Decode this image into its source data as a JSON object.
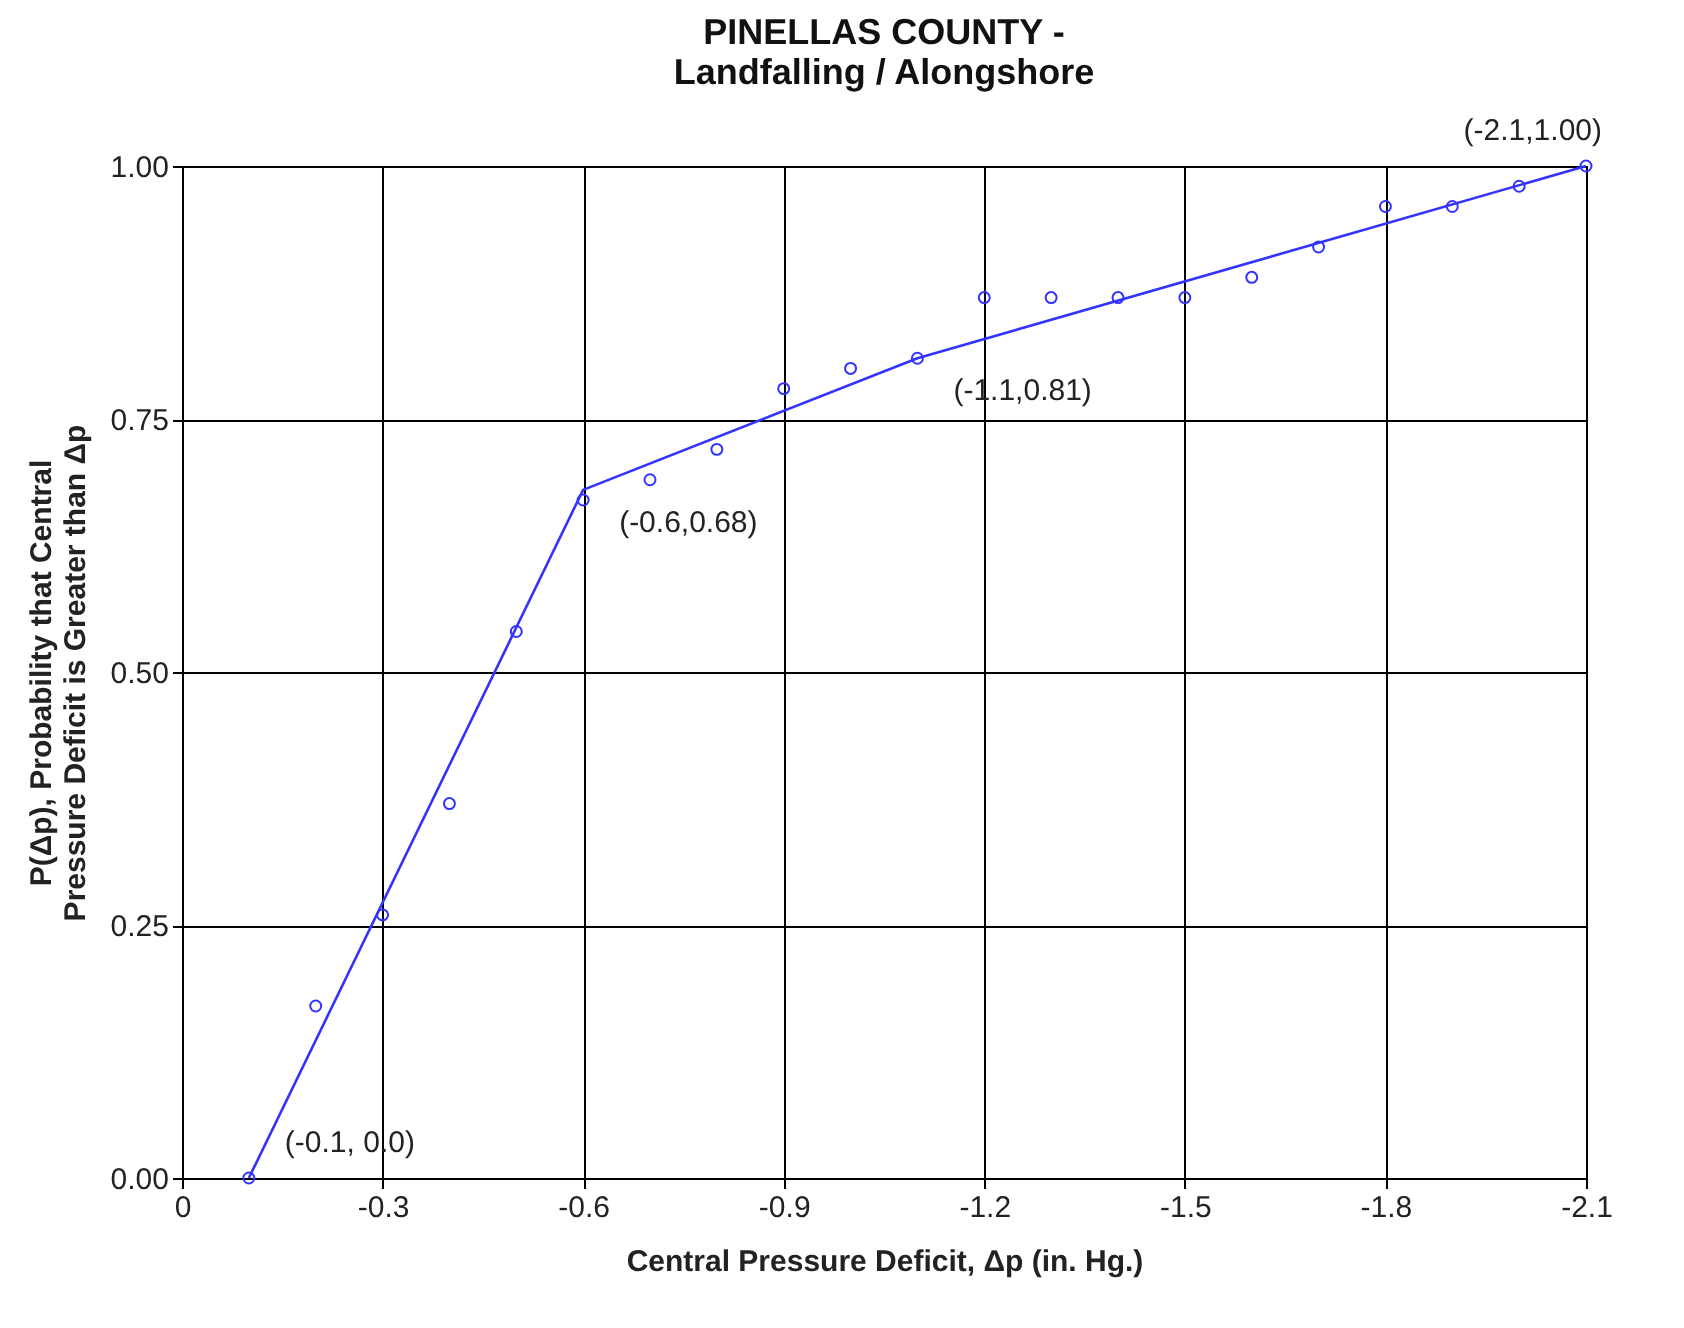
{
  "chart_data": {
    "type": "scatter",
    "title": "PINELLAS  COUNTY -\nLandfalling / Alongshore",
    "xlabel": "Central Pressure Deficit, Δp (in. Hg.)",
    "ylabel": "P(Δp), Probability that Central Pressure Deficit is Greater than Δp",
    "x": [
      -0.1,
      -0.2,
      -0.3,
      -0.4,
      -0.5,
      -0.6,
      -0.7,
      -0.8,
      -0.9,
      -1.0,
      -1.1,
      -1.2,
      -1.3,
      -1.4,
      -1.5,
      -1.6,
      -1.7,
      -1.8,
      -1.9,
      -2.0,
      -2.1
    ],
    "series": [
      {
        "color": "#3333ff",
        "marker": "circle",
        "values": [
          0.0,
          0.17,
          0.26,
          0.37,
          0.54,
          0.67,
          0.69,
          0.72,
          0.78,
          0.8,
          0.81,
          0.87,
          0.87,
          0.87,
          0.87,
          0.89,
          0.92,
          0.96,
          0.96,
          0.98,
          1.0
        ]
      },
      {
        "type": "line",
        "color": "#3333ff",
        "marker": "none",
        "x": [
          -0.1,
          -0.6,
          -1.1,
          -2.1
        ],
        "values": [
          0.0,
          0.68,
          0.81,
          1.0
        ]
      }
    ],
    "annotations": [
      {
        "text": "(-0.1,  0.0)",
        "x": -0.1,
        "y": 0.0
      },
      {
        "text": "(-0.6,0.68)",
        "x": -0.6,
        "y": 0.68
      },
      {
        "text": "(-1.1,0.81)",
        "x": -1.1,
        "y": 0.81
      },
      {
        "text": "(-2.1,1.00)",
        "x": -2.1,
        "y": 1.0
      }
    ],
    "xlim": [
      0,
      -2.1
    ],
    "xticks": [
      {
        "value": 0,
        "label": "0"
      },
      -0.3,
      -0.6,
      -0.9,
      -1.2,
      -1.5,
      -1.8,
      -2.1
    ],
    "ylim": [
      0,
      1
    ],
    "yticks": [
      {
        "value": 0,
        "label": "0.00"
      },
      {
        "value": 0.25,
        "label": "0.25"
      },
      {
        "value": 0.5,
        "label": "0.50"
      },
      {
        "value": 0.75,
        "label": "0.75"
      },
      {
        "value": 1,
        "label": "1.00"
      }
    ],
    "grid": true
  }
}
